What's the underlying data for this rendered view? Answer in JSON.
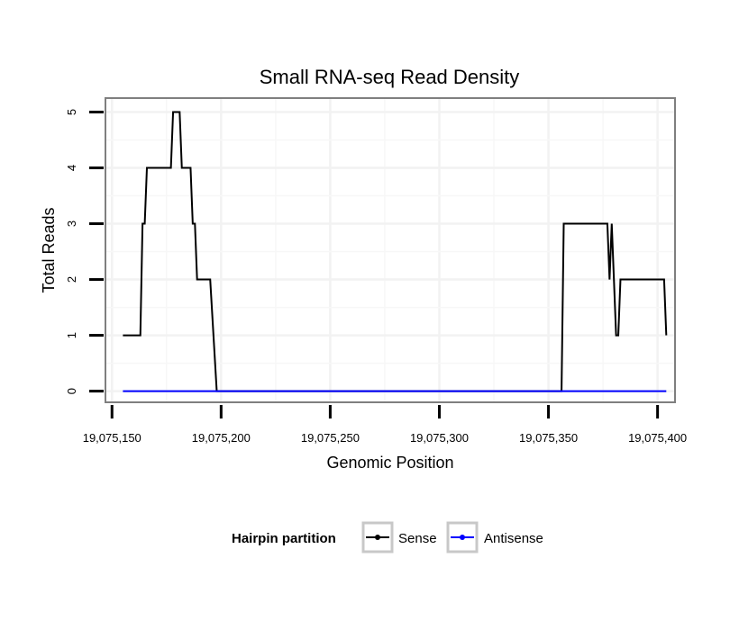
{
  "chart_data": {
    "type": "line",
    "title": "Small RNA-seq Read Density",
    "xlabel": "Genomic Position",
    "ylabel": "Total Reads",
    "xlim": [
      19075147,
      19075408
    ],
    "ylim": [
      -0.2,
      5.25
    ],
    "x_ticks": [
      19075150,
      19075200,
      19075250,
      19075300,
      19075350,
      19075400
    ],
    "x_tick_labels": [
      "19,075,150",
      "19,075,200",
      "19,075,250",
      "19,075,300",
      "19,075,350",
      "19,075,400"
    ],
    "y_ticks": [
      0,
      1,
      2,
      3,
      4,
      5
    ],
    "y_tick_labels": [
      "0",
      "1",
      "2",
      "3",
      "4",
      "5"
    ],
    "grid": true,
    "legend": {
      "title": "Hairpin partition",
      "position": "bottom",
      "entries": [
        {
          "name": "Sense",
          "color": "#000000"
        },
        {
          "name": "Antisense",
          "color": "#0000ff"
        }
      ]
    },
    "series": [
      {
        "name": "Sense",
        "color": "#000000",
        "x": [
          19075155,
          19075163,
          19075164,
          19075165,
          19075166,
          19075177,
          19075178,
          19075181,
          19075182,
          19075186,
          19075187,
          19075188,
          19075189,
          19075195,
          19075198,
          19075356,
          19075357,
          19075377,
          19075378,
          19075379,
          19075380,
          19075381,
          19075382,
          19075383,
          19075403,
          19075404
        ],
        "y": [
          1,
          1,
          3,
          3,
          4,
          4,
          5,
          5,
          4,
          4,
          3,
          3,
          2,
          2,
          0,
          0,
          3,
          3,
          2,
          3,
          2,
          1,
          1,
          2,
          2,
          1
        ]
      },
      {
        "name": "Antisense",
        "color": "#0000ff",
        "x": [
          19075155,
          19075404
        ],
        "y": [
          0,
          0
        ]
      }
    ]
  }
}
